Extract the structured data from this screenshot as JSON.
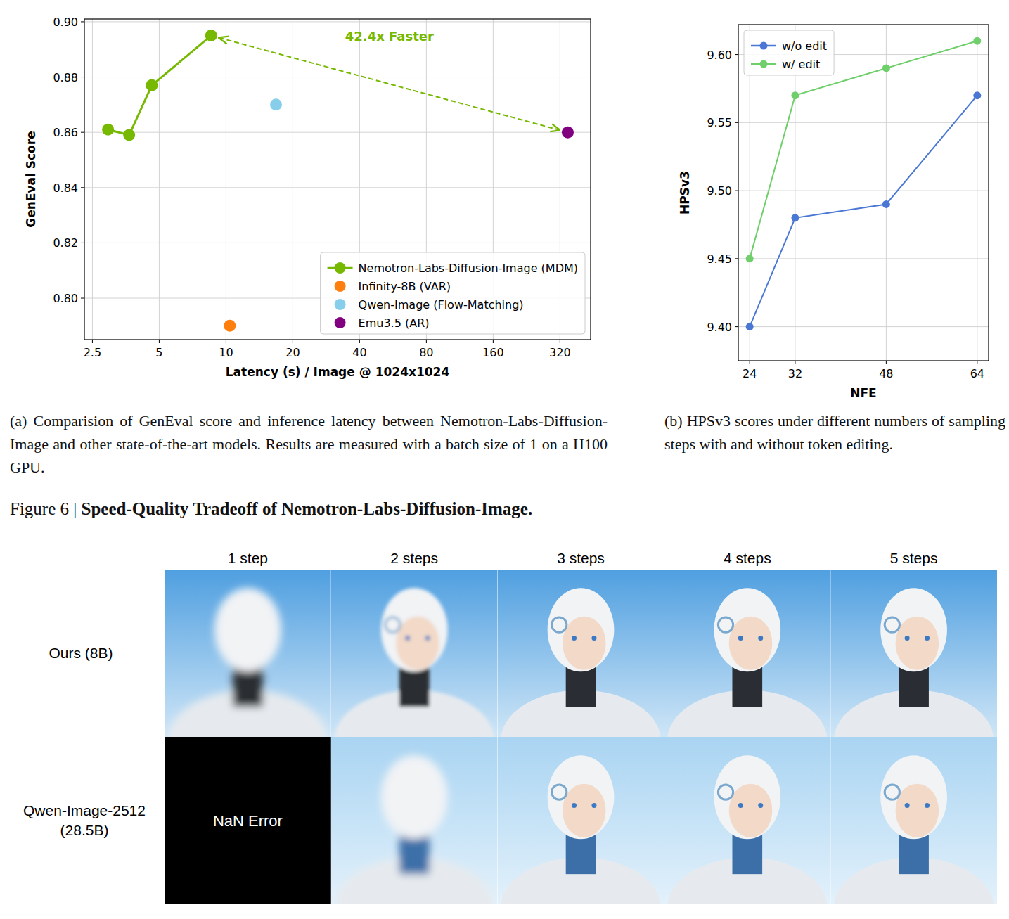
{
  "chart_data": [
    {
      "type": "scatter",
      "x_label": "Latency (s) / Image @ 1024x1024",
      "y_label": "GenEval Score",
      "log": "x",
      "xlim": [
        2.3,
        440
      ],
      "xticks": [
        2.5,
        5,
        10,
        20,
        40,
        80,
        160,
        320
      ],
      "ylim": [
        0.785,
        0.901
      ],
      "yticks": [
        {
          "value": 0.8,
          "label": "0.80"
        },
        0.82,
        0.84,
        0.86,
        0.88,
        {
          "value": 0.9,
          "label": "0.90"
        }
      ],
      "grid": true,
      "legend": "lower right",
      "annotation": "42.4x Faster",
      "series": [
        {
          "name": "Nemotron-Labs-Diffusion-Image (MDM)",
          "color": "#76b900",
          "type": "line",
          "marker": "circle",
          "x": [
            2.94,
            3.66,
            4.63,
            8.57
          ],
          "values": [
            0.861,
            0.859,
            0.877,
            0.895
          ]
        },
        {
          "name": "Infinity-8B (VAR)",
          "color": "#ff7f0e",
          "type": "scatter",
          "marker": "circle",
          "x": [
            10.4
          ],
          "values": [
            0.79
          ]
        },
        {
          "name": "Qwen-Image (Flow-Matching)",
          "color": "#87ceeb",
          "type": "scatter",
          "marker": "circle",
          "x": [
            16.8
          ],
          "values": [
            0.87
          ]
        },
        {
          "name": "Emu3.5 (AR)",
          "color": "#800080",
          "type": "scatter",
          "marker": "circle",
          "x": [
            347
          ],
          "values": [
            0.86
          ]
        }
      ]
    },
    {
      "type": "line",
      "x_label": "NFE",
      "y_label": "HPSv3",
      "x": [
        24,
        32,
        48,
        64
      ],
      "xlim": [
        22,
        66
      ],
      "xticks": [
        24,
        32,
        48,
        64
      ],
      "ylim": [
        9.375,
        9.622
      ],
      "yticks": [
        {
          "value": 9.4,
          "label": "9.40"
        },
        9.45,
        {
          "value": 9.5,
          "label": "9.50"
        },
        9.55,
        {
          "value": 9.6,
          "label": "9.60"
        }
      ],
      "grid": true,
      "legend": "upper left",
      "series": [
        {
          "name": "w/o edit",
          "color": "#4a77d4",
          "marker": "circle",
          "values": [
            9.4,
            9.48,
            9.49,
            9.57
          ]
        },
        {
          "name": "w/ edit",
          "color": "#6fcf6a",
          "marker": "circle",
          "values": [
            9.45,
            9.57,
            9.59,
            9.61
          ]
        }
      ]
    }
  ],
  "captions": {
    "a": "(a) Comparision of GenEval score and inference latency between Nemotron-Labs-Diffusion-Image and other state-of-the-art models. Results are measured with a batch size of 1 on a H100 GPU.",
    "b": "(b) HPSv3 scores under different numbers of sampling steps with and without token editing."
  },
  "figure": {
    "label": "Figure 6 |",
    "title": "Speed-Quality Tradeoff of Nemotron-Labs-Diffusion-Image."
  },
  "image_grid": {
    "columns": [
      "1 step",
      "2 steps",
      "3 steps",
      "4 steps",
      "5 steps"
    ],
    "rows": [
      "Ours (8B)",
      "Qwen-Image-2512 (28.5B)"
    ],
    "nan_label": "NaN Error"
  }
}
